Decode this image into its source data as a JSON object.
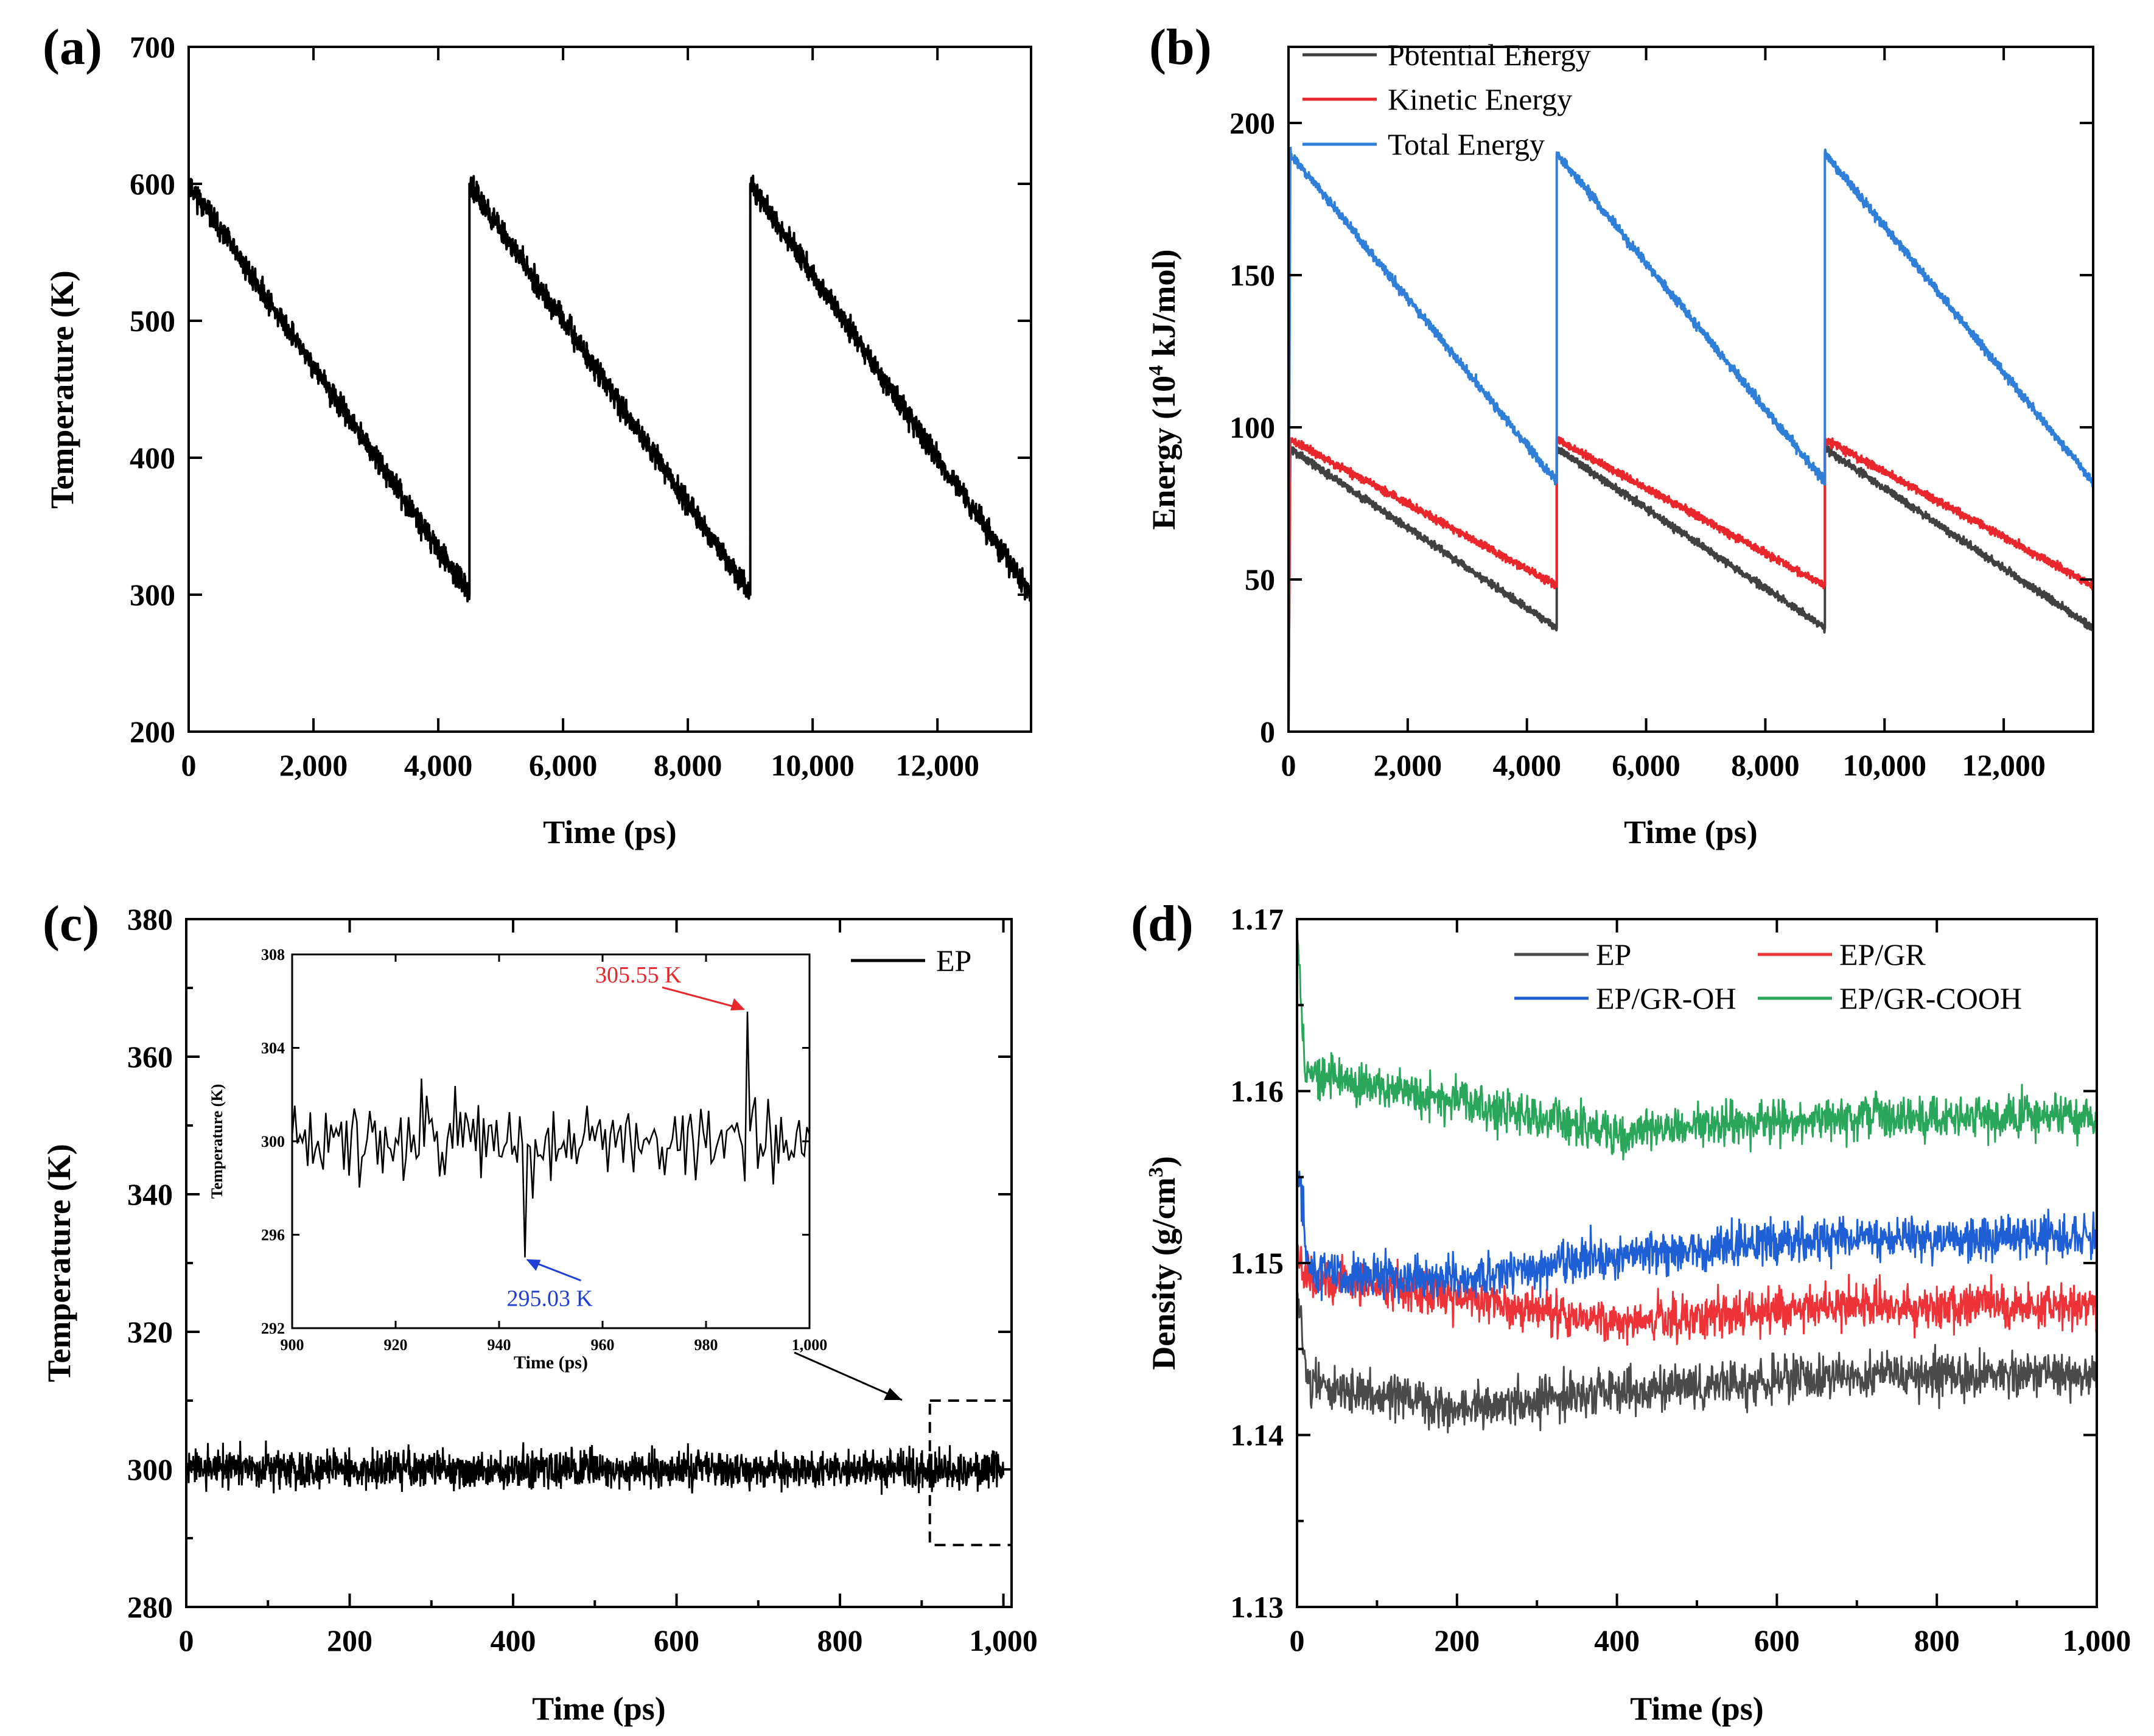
{
  "chart_data": [
    {
      "panel_label": "(a)",
      "type": "line",
      "xlabel": "Time (ps)",
      "ylabel": "Temperature (K)",
      "xlim": [
        0,
        13500
      ],
      "ylim": [
        200,
        700
      ],
      "xticks": [
        0,
        2000,
        4000,
        6000,
        8000,
        10000,
        12000
      ],
      "xtick_labels": [
        "0",
        "2,000",
        "4,000",
        "6,000",
        "8,000",
        "10,000",
        "12,000"
      ],
      "yticks": [
        200,
        300,
        400,
        500,
        600,
        700
      ],
      "ytick_labels": [
        "200",
        "300",
        "400",
        "500",
        "600",
        "700"
      ],
      "series": [
        {
          "name": "Temperature",
          "color": "#000000",
          "noise": 8,
          "x": [
            0,
            4500,
            4500,
            9000,
            9000,
            13500
          ],
          "y": [
            600,
            300,
            600,
            300,
            600,
            300
          ]
        }
      ]
    },
    {
      "panel_label": "(b)",
      "type": "line",
      "xlabel": "Time (ps)",
      "ylabel_prefix": "Energy (10",
      "ylabel_sup": "4",
      "ylabel_suffix": " kJ/mol)",
      "xlim": [
        0,
        13500
      ],
      "ylim": [
        0,
        225
      ],
      "xticks": [
        0,
        2000,
        4000,
        6000,
        8000,
        10000,
        12000
      ],
      "xtick_labels": [
        "0",
        "2,000",
        "4,000",
        "6,000",
        "8,000",
        "10,000",
        "12,000"
      ],
      "yticks": [
        0,
        50,
        100,
        150,
        200
      ],
      "ytick_labels": [
        "0",
        "50",
        "100",
        "150",
        "200"
      ],
      "legend": [
        "Potential Energy",
        "Kinetic Energy",
        "Total Energy"
      ],
      "series": [
        {
          "name": "Potential Energy",
          "color": "#404040",
          "noise": 1.2,
          "x": [
            0,
            30,
            4500,
            4500,
            9000,
            9000,
            13500
          ],
          "y": [
            0,
            93,
            34,
            93,
            34,
            93,
            34
          ]
        },
        {
          "name": "Kinetic Energy",
          "color": "#e8262b",
          "noise": 1.2,
          "x": [
            0,
            30,
            4500,
            4500,
            9000,
            9000,
            13500
          ],
          "y": [
            0,
            96,
            48,
            96,
            48,
            96,
            48
          ]
        },
        {
          "name": "Total Energy",
          "color": "#2f7ed8",
          "noise": 1.5,
          "x": [
            0,
            30,
            4500,
            4500,
            9000,
            9000,
            13500
          ],
          "y": [
            25,
            190,
            82,
            190,
            82,
            190,
            82
          ]
        }
      ]
    },
    {
      "panel_label": "(c)",
      "type": "line",
      "xlabel": "Time (ps)",
      "ylabel": "Temperature (K)",
      "xlim": [
        0,
        1010
      ],
      "ylim": [
        280,
        380
      ],
      "xticks": [
        0,
        200,
        400,
        600,
        800,
        1000
      ],
      "xtick_labels": [
        "0",
        "200",
        "400",
        "600",
        "800",
        "1,000"
      ],
      "yticks": [
        280,
        300,
        320,
        340,
        360,
        380
      ],
      "ytick_labels": [
        "280",
        "300",
        "320",
        "340",
        "360",
        "380"
      ],
      "legend": [
        "EP"
      ],
      "series": [
        {
          "name": "EP",
          "color": "#000000",
          "mean": 300,
          "noise": 2.6
        }
      ],
      "highlight_box": {
        "x": [
          910,
          1010
        ],
        "y": [
          289,
          310
        ]
      },
      "inset": {
        "xlabel": "Time (ps)",
        "ylabel": "Temperature (K)",
        "xlim": [
          900,
          1000
        ],
        "ylim": [
          292,
          308
        ],
        "xticks": [
          900,
          920,
          940,
          960,
          980,
          1000
        ],
        "xtick_labels": [
          "900",
          "920",
          "940",
          "960",
          "980",
          "1,000"
        ],
        "yticks": [
          292,
          296,
          300,
          304,
          308
        ],
        "ytick_labels": [
          "292",
          "296",
          "300",
          "304",
          "308"
        ],
        "max_annotation": {
          "label": "305.55 K",
          "x": 988,
          "y": 305.55,
          "color": "#e8262b"
        },
        "min_annotation": {
          "label": "295.03 K",
          "x": 945,
          "y": 295.03,
          "color": "#1f3fd6"
        }
      }
    },
    {
      "panel_label": "(d)",
      "type": "line",
      "xlabel": "Time (ps)",
      "ylabel_prefix": "Density (g/cm",
      "ylabel_sup": "3",
      "ylabel_suffix": ")",
      "xlim": [
        0,
        1000
      ],
      "ylim": [
        1.13,
        1.17
      ],
      "xticks": [
        0,
        200,
        400,
        600,
        800,
        1000
      ],
      "xtick_labels": [
        "0",
        "200",
        "400",
        "600",
        "800",
        "1,000"
      ],
      "yticks": [
        1.13,
        1.14,
        1.15,
        1.16,
        1.17
      ],
      "ytick_labels": [
        "1.13",
        "1.14",
        "1.15",
        "1.16",
        "1.17"
      ],
      "legend": [
        "EP",
        "EP/GR",
        "EP/GR-OH",
        "EP/GR-COOH"
      ],
      "series": [
        {
          "name": "EP",
          "color": "#4a4a4a",
          "noise": 0.0012,
          "x": [
            0,
            15,
            200,
            400,
            700,
            1000
          ],
          "y": [
            1.148,
            1.143,
            1.1415,
            1.1425,
            1.1435,
            1.1435
          ]
        },
        {
          "name": "EP/GR",
          "color": "#ee3338",
          "noise": 0.0012,
          "x": [
            0,
            15,
            200,
            400,
            700,
            1000
          ],
          "y": [
            1.151,
            1.149,
            1.148,
            1.1465,
            1.1475,
            1.1475
          ]
        },
        {
          "name": "EP/GR-OH",
          "color": "#1f5fd6",
          "noise": 0.0012,
          "x": [
            0,
            15,
            200,
            400,
            700,
            1000
          ],
          "y": [
            1.156,
            1.1495,
            1.149,
            1.1505,
            1.1515,
            1.1515
          ]
        },
        {
          "name": "EP/GR-COOH",
          "color": "#2aa65a",
          "noise": 0.0012,
          "x": [
            0,
            10,
            200,
            400,
            700,
            1000
          ],
          "y": [
            1.17,
            1.161,
            1.1595,
            1.1575,
            1.1585,
            1.1585
          ]
        }
      ]
    }
  ]
}
